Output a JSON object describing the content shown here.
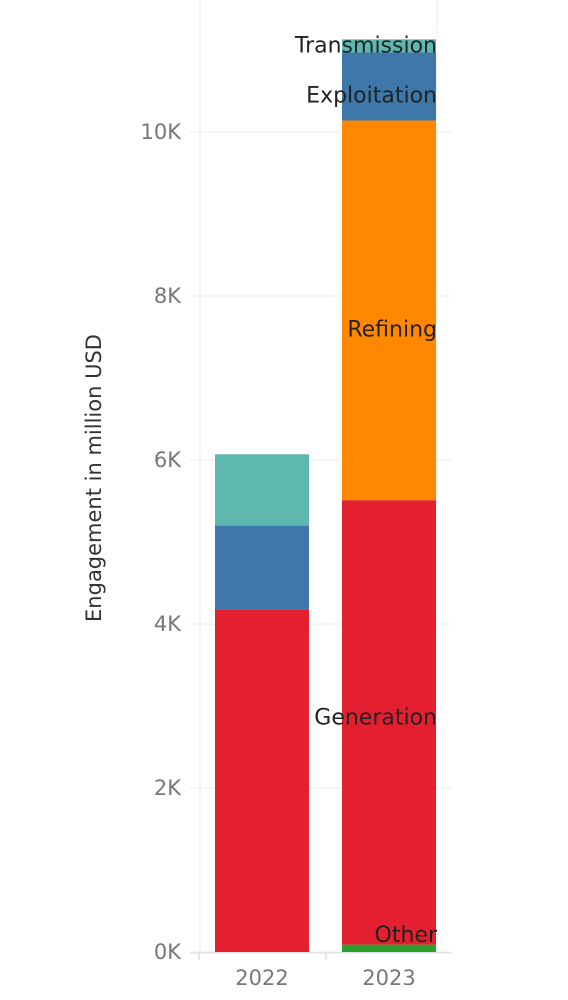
{
  "chart_data": {
    "type": "bar",
    "stacked": true,
    "ylabel": "Engagement in million USD",
    "xlabel": "",
    "ylim": [
      0,
      11000
    ],
    "yticks": [
      0,
      2000,
      4000,
      6000,
      8000,
      10000
    ],
    "ytick_labels": [
      "0K",
      "2K",
      "4K",
      "6K",
      "8K",
      "10K"
    ],
    "grid": true,
    "categories": [
      "2022",
      "2023"
    ],
    "series": [
      {
        "name": "Other",
        "color": "#2ca02c",
        "values": [
          0,
          90
        ]
      },
      {
        "name": "Generation",
        "color": "#e41f30",
        "values": [
          4180,
          5420
        ]
      },
      {
        "name": "Refining",
        "color": "#ff8800",
        "values": [
          0,
          4630
        ]
      },
      {
        "name": "Exploitation",
        "color": "#3e77a9",
        "values": [
          1020,
          830
        ]
      },
      {
        "name": "Transmission",
        "color": "#5fb8b0",
        "values": [
          870,
          160
        ]
      }
    ],
    "segment_labels_category": "2023"
  }
}
